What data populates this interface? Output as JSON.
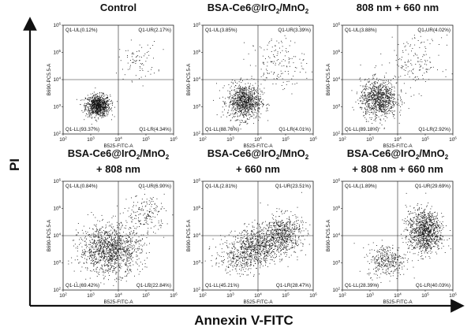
{
  "chart_data": [
    {
      "type": "scatter",
      "title": "Control",
      "title_parts": [
        {
          "text": "Control"
        }
      ],
      "xlabel": "B525-FITC-A",
      "ylabel": "B690-PC5.5-A",
      "xlim": [
        100,
        1000000
      ],
      "ylim": [
        100,
        1000000
      ],
      "log_scale": true,
      "quadrants": [
        {
          "name": "Q1-UL",
          "value": "0.12%",
          "label": "Q1-UL(0.12%)"
        },
        {
          "name": "Q1-UR",
          "value": "2.17%",
          "label": "Q1-UR(2.17%)"
        },
        {
          "name": "Q1-LL",
          "value": "93.37%",
          "label": "Q1-LL(93.37%)"
        },
        {
          "name": "Q1-LR",
          "value": "4.34%",
          "label": "Q1-LR(4.34%)"
        }
      ]
    },
    {
      "type": "scatter",
      "title": "BSA-Ce6@IrO2/MnO2",
      "title_parts": [
        {
          "text": "BSA-Ce6@IrO"
        },
        {
          "text": "2",
          "sub": true
        },
        {
          "text": "/MnO"
        },
        {
          "text": "2",
          "sub": true
        }
      ],
      "xlabel": "B525-FITC-A",
      "ylabel": "B690-PC5.5-A",
      "xlim": [
        100,
        1000000
      ],
      "ylim": [
        100,
        1000000
      ],
      "log_scale": true,
      "quadrants": [
        {
          "name": "Q1-UL",
          "value": "3.85%",
          "label": "Q1-UL(3.85%)"
        },
        {
          "name": "Q1-UR",
          "value": "3.39%",
          "label": "Q1-UR(3.39%)"
        },
        {
          "name": "Q1-LL",
          "value": "88.76%",
          "label": "Q1-LL(88.76%)"
        },
        {
          "name": "Q1-LR",
          "value": "4.01%",
          "label": "Q1-LR(4.01%)"
        }
      ]
    },
    {
      "type": "scatter",
      "title": "808 nm + 660 nm",
      "title_parts": [
        {
          "text": "808 nm + 660 nm"
        }
      ],
      "xlabel": "B525-FITC-A",
      "ylabel": "B690-PC5.5-A",
      "xlim": [
        100,
        1000000
      ],
      "ylim": [
        100,
        1000000
      ],
      "log_scale": true,
      "quadrants": [
        {
          "name": "Q1-UL",
          "value": "3.88%",
          "label": "Q1-UL(3.88%)"
        },
        {
          "name": "Q1-UR",
          "value": "4.02%",
          "label": "Q1-UR(4.02%)"
        },
        {
          "name": "Q1-LL",
          "value": "89.18%",
          "label": "Q1-LL(89.18%)"
        },
        {
          "name": "Q1-LR",
          "value": "2.92%",
          "label": "Q1-LR(2.92%)"
        }
      ]
    },
    {
      "type": "scatter",
      "title": "BSA-Ce6@IrO2/MnO2 + 808 nm",
      "title_parts": [
        {
          "text": "BSA-Ce6@IrO"
        },
        {
          "text": "2",
          "sub": true
        },
        {
          "text": "/MnO"
        },
        {
          "text": "2",
          "sub": true
        },
        {
          "text": " + 808 nm",
          "newline": true
        }
      ],
      "xlabel": "B525-FITC-A",
      "ylabel": "B690-PC5.5-A",
      "xlim": [
        100,
        1000000
      ],
      "ylim": [
        100,
        1000000
      ],
      "log_scale": true,
      "quadrants": [
        {
          "name": "Q1-UL",
          "value": "0.84%",
          "label": "Q1-UL(0.84%)"
        },
        {
          "name": "Q1-UR",
          "value": "6.90%",
          "label": "Q1-UR(6.90%)"
        },
        {
          "name": "Q1-LL",
          "value": "69.42%",
          "label": "Q1-LL(69.42%)"
        },
        {
          "name": "Q1-LR",
          "value": "22.84%",
          "label": "Q1-LR(22.84%)"
        }
      ]
    },
    {
      "type": "scatter",
      "title": "BSA-Ce6@IrO2/MnO2 + 660 nm",
      "title_parts": [
        {
          "text": "BSA-Ce6@IrO"
        },
        {
          "text": "2",
          "sub": true
        },
        {
          "text": "/MnO"
        },
        {
          "text": "2",
          "sub": true
        },
        {
          "text": " + 660 nm",
          "newline": true
        }
      ],
      "xlabel": "B525-FITC-A",
      "ylabel": "B690-PC5.5-A",
      "xlim": [
        100,
        1000000
      ],
      "ylim": [
        100,
        1000000
      ],
      "log_scale": true,
      "quadrants": [
        {
          "name": "Q1-UL",
          "value": "2.81%",
          "label": "Q1-UL(2.81%)"
        },
        {
          "name": "Q1-UR",
          "value": "23.51%",
          "label": "Q1-UR(23.51%)"
        },
        {
          "name": "Q1-LL",
          "value": "45.21%",
          "label": "Q1-LL(45.21%)"
        },
        {
          "name": "Q1-LR",
          "value": "28.47%",
          "label": "Q1-LR(28.47%)"
        }
      ]
    },
    {
      "type": "scatter",
      "title": "BSA-Ce6@IrO2/MnO2 + 808 nm + 660 nm",
      "title_parts": [
        {
          "text": "BSA-Ce6@IrO"
        },
        {
          "text": "2",
          "sub": true
        },
        {
          "text": "/MnO"
        },
        {
          "text": "2",
          "sub": true
        },
        {
          "text": " + 808 nm + 660 nm",
          "newline": true
        }
      ],
      "xlabel": "B525-FITC-A",
      "ylabel": "B690-PC5.5-A",
      "xlim": [
        100,
        1000000
      ],
      "ylim": [
        100,
        1000000
      ],
      "log_scale": true,
      "quadrants": [
        {
          "name": "Q1-UL",
          "value": "1.89%",
          "label": "Q1-UL(1.89%)"
        },
        {
          "name": "Q1-UR",
          "value": "29.69%",
          "label": "Q1-UR(29.69%)"
        },
        {
          "name": "Q1-LL",
          "value": "28.39%",
          "label": "Q1-LL(28.39%)"
        },
        {
          "name": "Q1-LR",
          "value": "40.03%",
          "label": "Q1-LR(40.03%)"
        }
      ]
    }
  ],
  "figure": {
    "y_axis_title": "PI",
    "x_axis_title": "Annexin V-FITC"
  },
  "ticks": {
    "x": [
      "10^2",
      "10^3",
      "10^4",
      "10^5",
      "10^6"
    ],
    "y": [
      "10^2",
      "10^3",
      "10^4",
      "10^5",
      "10^6"
    ]
  },
  "gate": {
    "x": 10000,
    "y": 10000
  },
  "colors": {
    "dots": "#111111",
    "axes": "#111111"
  }
}
